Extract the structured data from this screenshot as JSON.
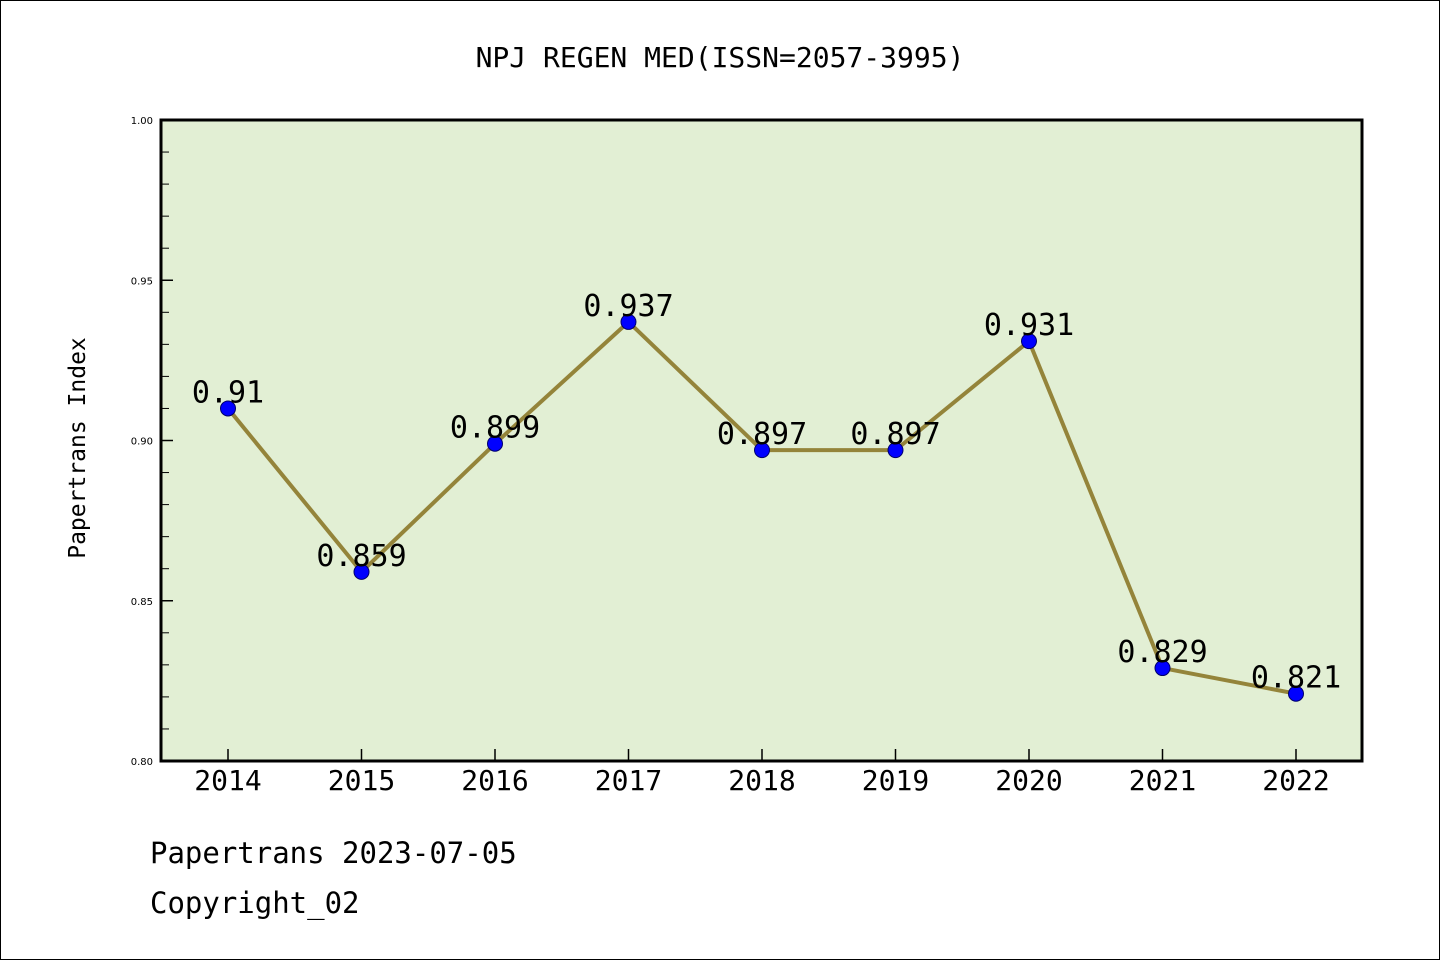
{
  "chart_data": {
    "type": "line",
    "title": "NPJ REGEN MED(ISSN=2057-3995)",
    "xlabel": "",
    "ylabel": "Papertrans Index",
    "x": [
      "2014",
      "2015",
      "2016",
      "2017",
      "2018",
      "2019",
      "2020",
      "2021",
      "2022"
    ],
    "values": [
      0.91,
      0.859,
      0.899,
      0.937,
      0.897,
      0.897,
      0.931,
      0.829,
      0.821
    ],
    "data_labels": [
      "0.91",
      "0.859",
      "0.899",
      "0.937",
      "0.897",
      "0.897",
      "0.931",
      "0.829",
      "0.821"
    ],
    "ylim": [
      0.8,
      1.0
    ],
    "yticks": [
      "0.80",
      "0.85",
      "0.90",
      "0.95",
      "1.00"
    ],
    "ytick_values": [
      0.8,
      0.85,
      0.9,
      0.95,
      1.0
    ],
    "grid": false,
    "legend": "none",
    "colors": {
      "plot_background": "#e2efd4",
      "line": "#94843a",
      "marker": "#0000ff",
      "axis": "#000000"
    }
  },
  "footer": {
    "date_text": "Papertrans 2023-07-05",
    "copyright_text": "Copyright_02"
  }
}
